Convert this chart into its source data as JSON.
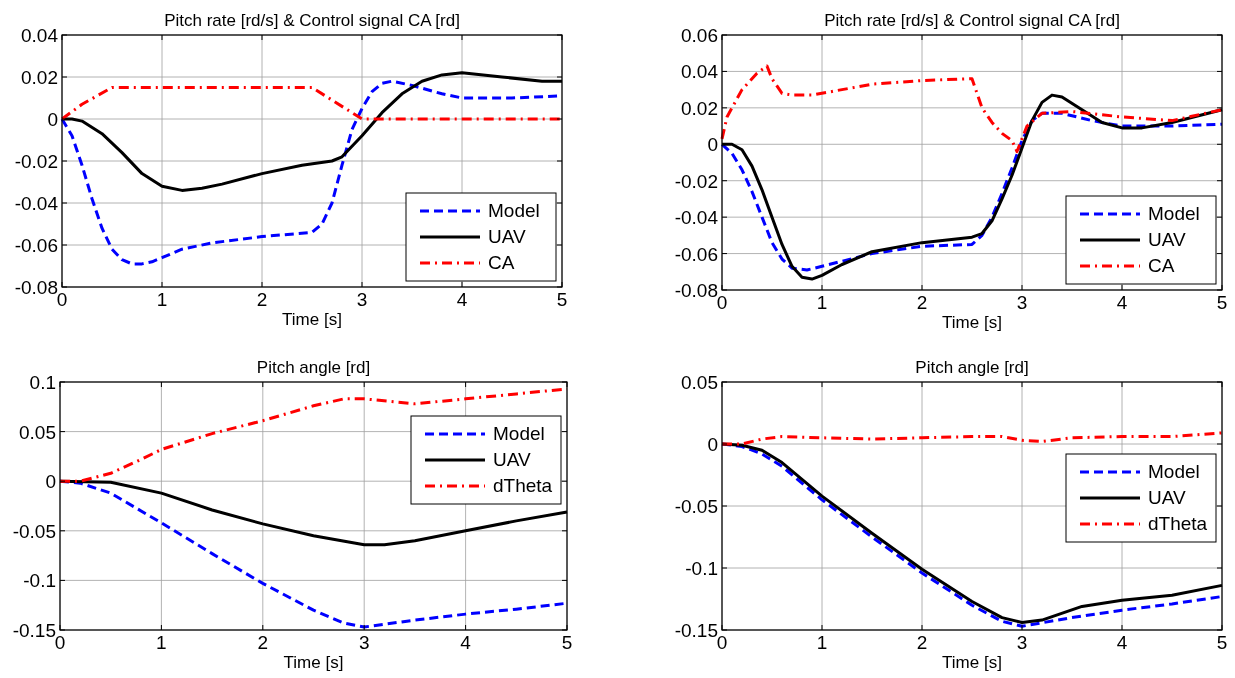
{
  "chart_data": [
    {
      "type": "line",
      "title": "Pitch rate [rd/s] & Control signal CA [rd]",
      "xlabel": "Time [s]",
      "xlim": [
        0,
        5
      ],
      "xticks": [
        0,
        1,
        2,
        3,
        4,
        5
      ],
      "ylim": [
        -0.08,
        0.04
      ],
      "yticks": [
        -0.08,
        -0.06,
        -0.04,
        -0.02,
        0,
        0.02,
        0.04
      ],
      "grid": true,
      "legend": "bottom right",
      "series": [
        {
          "name": "Model",
          "color": "#0000ff",
          "line_style": "dashed",
          "x": [
            0,
            0.1,
            0.2,
            0.3,
            0.4,
            0.5,
            0.6,
            0.7,
            0.8,
            0.9,
            1.0,
            1.2,
            1.5,
            2.0,
            2.5,
            2.6,
            2.7,
            2.8,
            2.9,
            3.0,
            3.1,
            3.2,
            3.3,
            3.5,
            3.8,
            4.0,
            4.5,
            5
          ],
          "values": [
            0,
            -0.008,
            -0.022,
            -0.038,
            -0.052,
            -0.062,
            -0.067,
            -0.069,
            -0.069,
            -0.068,
            -0.066,
            -0.062,
            -0.059,
            -0.056,
            -0.054,
            -0.05,
            -0.04,
            -0.022,
            -0.005,
            0.005,
            0.013,
            0.017,
            0.018,
            0.016,
            0.012,
            0.01,
            0.01,
            0.011
          ]
        },
        {
          "name": "UAV",
          "color": "#000000",
          "line_style": "solid",
          "x": [
            0,
            0.1,
            0.2,
            0.4,
            0.6,
            0.8,
            1.0,
            1.2,
            1.4,
            1.6,
            2.0,
            2.4,
            2.7,
            2.8,
            2.9,
            3.0,
            3.2,
            3.4,
            3.6,
            3.8,
            4.0,
            4.4,
            4.8,
            5
          ],
          "values": [
            0,
            0,
            -0.001,
            -0.007,
            -0.016,
            -0.026,
            -0.032,
            -0.034,
            -0.033,
            -0.031,
            -0.026,
            -0.022,
            -0.02,
            -0.018,
            -0.013,
            -0.008,
            0.003,
            0.012,
            0.018,
            0.021,
            0.022,
            0.02,
            0.018,
            0.018
          ]
        },
        {
          "name": "CA",
          "color": "#ff0000",
          "line_style": "dashdot",
          "x": [
            0,
            0.2,
            0.5,
            2.5,
            3.0,
            5
          ],
          "values": [
            0,
            0.007,
            0.015,
            0.015,
            0,
            0
          ]
        }
      ]
    },
    {
      "type": "line",
      "title": "Pitch rate [rd/s] & Control signal CA [rd]",
      "xlabel": "Time [s]",
      "xlim": [
        0,
        5
      ],
      "xticks": [
        0,
        1,
        2,
        3,
        4,
        5
      ],
      "ylim": [
        -0.08,
        0.06
      ],
      "yticks": [
        -0.08,
        -0.06,
        -0.04,
        -0.02,
        0,
        0.02,
        0.04,
        0.06
      ],
      "grid": true,
      "legend": "bottom right",
      "series": [
        {
          "name": "Model",
          "color": "#0000ff",
          "line_style": "dashed",
          "x": [
            0,
            0.1,
            0.2,
            0.3,
            0.4,
            0.5,
            0.6,
            0.7,
            0.85,
            1.0,
            1.5,
            2.0,
            2.5,
            2.6,
            2.7,
            2.8,
            2.9,
            3.0,
            3.1,
            3.2,
            3.4,
            3.7,
            4.0,
            4.5,
            5
          ],
          "values": [
            0,
            -0.005,
            -0.014,
            -0.026,
            -0.04,
            -0.054,
            -0.063,
            -0.068,
            -0.069,
            -0.067,
            -0.06,
            -0.056,
            -0.055,
            -0.05,
            -0.04,
            -0.027,
            -0.013,
            0.002,
            0.013,
            0.017,
            0.017,
            0.013,
            0.01,
            0.01,
            0.011
          ]
        },
        {
          "name": "UAV",
          "color": "#000000",
          "line_style": "solid",
          "x": [
            0,
            0.1,
            0.2,
            0.3,
            0.4,
            0.5,
            0.6,
            0.7,
            0.8,
            0.9,
            1.0,
            1.2,
            1.5,
            2.0,
            2.5,
            2.6,
            2.7,
            2.8,
            2.9,
            3.0,
            3.1,
            3.2,
            3.3,
            3.4,
            3.6,
            3.8,
            4.0,
            4.2,
            4.5,
            5
          ],
          "values": [
            0,
            0,
            -0.003,
            -0.012,
            -0.025,
            -0.04,
            -0.055,
            -0.067,
            -0.073,
            -0.074,
            -0.072,
            -0.066,
            -0.059,
            -0.054,
            -0.051,
            -0.049,
            -0.042,
            -0.03,
            -0.017,
            -0.002,
            0.013,
            0.023,
            0.027,
            0.026,
            0.019,
            0.012,
            0.009,
            0.009,
            0.012,
            0.019
          ]
        },
        {
          "name": "CA",
          "color": "#ff0000",
          "line_style": "dashdot",
          "x": [
            0,
            0.05,
            0.2,
            0.35,
            0.45,
            0.5,
            0.6,
            0.7,
            0.9,
            1.2,
            1.5,
            2.0,
            2.5,
            2.55,
            2.6,
            2.7,
            2.8,
            2.9,
            2.95,
            3.05,
            3.2,
            3.5,
            4.0,
            4.5,
            5
          ],
          "values": [
            0.003,
            0.015,
            0.03,
            0.039,
            0.043,
            0.036,
            0.028,
            0.027,
            0.027,
            0.03,
            0.033,
            0.035,
            0.036,
            0.028,
            0.02,
            0.012,
            0.006,
            0.002,
            -0.004,
            0.01,
            0.017,
            0.018,
            0.015,
            0.013,
            0.019
          ]
        }
      ]
    },
    {
      "type": "line",
      "title": "Pitch angle [rd]",
      "xlabel": "Time [s]",
      "xlim": [
        0,
        5
      ],
      "xticks": [
        0,
        1,
        2,
        3,
        4,
        5
      ],
      "ylim": [
        -0.15,
        0.1
      ],
      "yticks": [
        -0.15,
        -0.1,
        -0.05,
        0,
        0.05,
        0.1
      ],
      "grid": true,
      "legend": "top right",
      "series": [
        {
          "name": "Model",
          "color": "#0000ff",
          "line_style": "dashed",
          "x": [
            0,
            0.2,
            0.5,
            1,
            1.5,
            2,
            2.5,
            2.8,
            3,
            3.5,
            4,
            4.5,
            5
          ],
          "values": [
            0,
            -0.002,
            -0.012,
            -0.042,
            -0.073,
            -0.103,
            -0.13,
            -0.143,
            -0.147,
            -0.14,
            -0.134,
            -0.129,
            -0.123
          ]
        },
        {
          "name": "UAV",
          "color": "#000000",
          "line_style": "solid",
          "x": [
            0,
            0.5,
            1,
            1.5,
            2,
            2.5,
            3,
            3.2,
            3.5,
            4,
            4.5,
            5
          ],
          "values": [
            0,
            -0.001,
            -0.012,
            -0.029,
            -0.043,
            -0.055,
            -0.064,
            -0.064,
            -0.06,
            -0.05,
            -0.04,
            -0.031
          ]
        },
        {
          "name": "dTheta",
          "color": "#ff0000",
          "line_style": "dashdot",
          "x": [
            0,
            0.2,
            0.5,
            0.8,
            1,
            1.5,
            2,
            2.5,
            2.8,
            3,
            3.5,
            4,
            4.5,
            5
          ],
          "values": [
            0,
            0,
            0.008,
            0.022,
            0.032,
            0.048,
            0.061,
            0.076,
            0.083,
            0.083,
            0.078,
            0.083,
            0.088,
            0.093
          ]
        }
      ]
    },
    {
      "type": "line",
      "title": "Pitch angle [rd]",
      "xlabel": "Time [s]",
      "xlim": [
        0,
        5
      ],
      "xticks": [
        0,
        1,
        2,
        3,
        4,
        5
      ],
      "ylim": [
        -0.15,
        0.05
      ],
      "yticks": [
        -0.15,
        -0.1,
        -0.05,
        0,
        0.05
      ],
      "grid": true,
      "legend": "right",
      "series": [
        {
          "name": "Model",
          "color": "#0000ff",
          "line_style": "dashed",
          "x": [
            0,
            0.2,
            0.4,
            0.6,
            1,
            1.5,
            2,
            2.5,
            2.8,
            3,
            3.5,
            4,
            4.5,
            5
          ],
          "values": [
            0,
            -0.002,
            -0.008,
            -0.018,
            -0.045,
            -0.075,
            -0.104,
            -0.13,
            -0.143,
            -0.147,
            -0.14,
            -0.134,
            -0.129,
            -0.123
          ]
        },
        {
          "name": "UAV",
          "color": "#000000",
          "line_style": "solid",
          "x": [
            0,
            0.2,
            0.4,
            0.6,
            1,
            1.5,
            2,
            2.5,
            2.8,
            3,
            3.2,
            3.6,
            4,
            4.5,
            5
          ],
          "values": [
            0,
            -0.001,
            -0.005,
            -0.015,
            -0.042,
            -0.072,
            -0.101,
            -0.127,
            -0.14,
            -0.144,
            -0.142,
            -0.131,
            -0.126,
            -0.122,
            -0.114
          ]
        },
        {
          "name": "dTheta",
          "color": "#ff0000",
          "line_style": "dashdot",
          "x": [
            0,
            0.2,
            0.4,
            0.6,
            1,
            1.5,
            2,
            2.5,
            2.8,
            3,
            3.2,
            3.5,
            4,
            4.5,
            5
          ],
          "values": [
            0,
            0,
            0.004,
            0.006,
            0.005,
            0.004,
            0.005,
            0.006,
            0.006,
            0.003,
            0.002,
            0.005,
            0.006,
            0.006,
            0.009
          ]
        }
      ]
    }
  ]
}
